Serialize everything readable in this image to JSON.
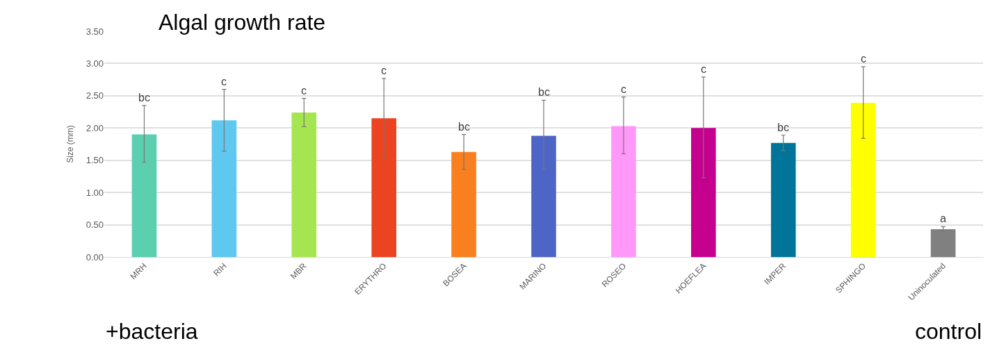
{
  "chart_data": {
    "type": "bar",
    "title": "Algal growth rate",
    "ylabel": "Size (mm)",
    "categories": [
      "MRH",
      "RIH",
      "MBR",
      "ERYTHRO",
      "BOSEA",
      "MARINO",
      "ROSEO",
      "HOEFLEA",
      "IMPER",
      "SPHINGO",
      "Uninoculated"
    ],
    "values": [
      1.9,
      2.12,
      2.24,
      2.15,
      1.63,
      1.88,
      2.03,
      2.0,
      1.77,
      2.39,
      0.43
    ],
    "colors": [
      "#5bcfb0",
      "#5ec8f0",
      "#a5e650",
      "#ec4321",
      "#fa7f1e",
      "#4d65c6",
      "#ff98f8",
      "#c5008f",
      "#007499",
      "#ffff00",
      "#808080"
    ],
    "errors": [
      [
        1.47,
        2.35
      ],
      [
        1.64,
        2.6
      ],
      [
        2.02,
        2.46
      ],
      [
        1.54,
        2.77
      ],
      [
        1.36,
        1.9
      ],
      [
        1.36,
        2.43
      ],
      [
        1.6,
        2.48
      ],
      [
        1.23,
        2.79
      ],
      [
        1.65,
        1.89
      ],
      [
        1.84,
        2.95
      ],
      [
        0.4,
        0.47
      ]
    ],
    "ylim": [
      0,
      3.5
    ],
    "yticks": [
      {
        "value": 0,
        "label": "0.00"
      },
      {
        "value": 0.5,
        "label": "0.50"
      },
      {
        "value": 1,
        "label": "1.00"
      },
      {
        "value": 1.5,
        "label": "1.50"
      },
      {
        "value": 2,
        "label": "2.00"
      },
      {
        "value": 2.5,
        "label": "2.50"
      },
      {
        "value": 3,
        "label": "3.00"
      },
      {
        "value": 3.5,
        "label": "3.50"
      }
    ],
    "grid": "y",
    "annotations": [
      "bc",
      "c",
      "c",
      "c",
      "bc",
      "bc",
      "c",
      "c",
      "bc",
      "c",
      "a",
      "+bacteria",
      "control"
    ]
  }
}
